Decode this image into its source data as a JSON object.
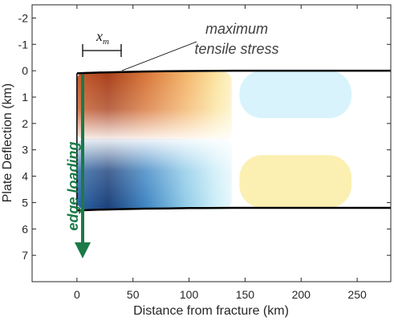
{
  "chart_data": {
    "type": "heatmap",
    "title": "",
    "xlabel": "Distance from fracture (km)",
    "ylabel": "Plate Deflection (km)",
    "xlim": [
      -40,
      280
    ],
    "ylim": [
      -2.5,
      8
    ],
    "y_reversed": true,
    "x_ticks": [
      0,
      50,
      100,
      150,
      200,
      250
    ],
    "y_ticks": [
      -2,
      -1,
      0,
      1,
      2,
      3,
      4,
      5,
      6,
      7
    ],
    "grid": false,
    "colormap": "diverging blue-white-orange",
    "plate_top_edge": {
      "x": [
        0,
        20,
        40,
        60,
        80,
        100,
        140,
        200,
        280
      ],
      "y": [
        0.1,
        0.07,
        0.05,
        0.03,
        0.02,
        0.01,
        0.0,
        0.0,
        0.0
      ]
    },
    "plate_bottom_edge": {
      "x": [
        0,
        20,
        40,
        60,
        80,
        100,
        140,
        200,
        280
      ],
      "y": [
        5.3,
        5.27,
        5.25,
        5.23,
        5.22,
        5.21,
        5.2,
        5.2,
        5.2
      ]
    },
    "stress_regions": [
      {
        "sign": "tensile",
        "x": [
          0,
          138
        ],
        "y": [
          0.05,
          2.6
        ],
        "peak_x": 35,
        "intensity": 1.0
      },
      {
        "sign": "compressive",
        "x": [
          0,
          138
        ],
        "y": [
          2.6,
          5.25
        ],
        "peak_x": 35,
        "intensity": 1.0
      },
      {
        "sign": "compressive",
        "x": [
          145,
          245
        ],
        "y": [
          0.0,
          1.8
        ],
        "peak_x": 190,
        "intensity": 0.2
      },
      {
        "sign": "tensile",
        "x": [
          145,
          245
        ],
        "y": [
          3.2,
          5.2
        ],
        "peak_x": 190,
        "intensity": 0.25
      }
    ],
    "annotations": [
      {
        "text": "maximum",
        "x": 35,
        "y": 0.0
      },
      {
        "text": "tensile stress",
        "x": 35,
        "y": 0.0
      },
      {
        "text": "x",
        "subscript": "m",
        "x_from": 0,
        "x_to": 35,
        "y": -0.75
      },
      {
        "text": "edge loading",
        "x": 0,
        "y_from": 0.1,
        "y_to": 6.8
      }
    ]
  },
  "colors": {
    "orange_peak": "#b5441a",
    "orange_mid": "#f0a35a",
    "yellow_light": "#fbeeaa",
    "blue_peak": "#1a3f7a",
    "blue_mid": "#5aa8d8",
    "cyan_light": "#d4f2fb",
    "edge_arrow": "#1b7a47",
    "plate_line": "#000000"
  }
}
